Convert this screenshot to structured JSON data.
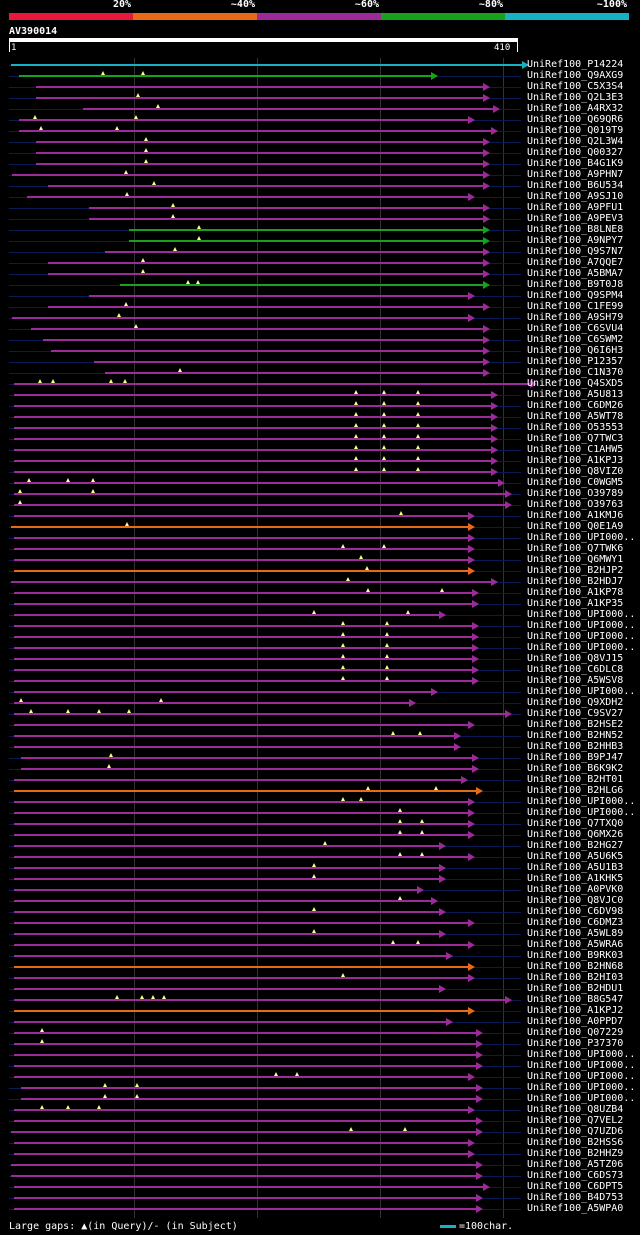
{
  "legend": {
    "labels": [
      "20%",
      "~40%",
      "~60%",
      "~80%",
      "~100%"
    ],
    "colors": [
      "#e8173c",
      "#e86a16",
      "#9c2a98",
      "#16a21c",
      "#17b1c4"
    ]
  },
  "query": {
    "id": "AV390014",
    "start_label": "1",
    "end_label": "410"
  },
  "hits": [
    {
      "name": "UniRef100_P14224",
      "bin": 5,
      "start": 1,
      "end": 415,
      "gaps": []
    },
    {
      "name": "UniRef100_Q9AXG9",
      "bin": 4,
      "start": 7,
      "end": 342,
      "gaps": [
        75,
        108
      ]
    },
    {
      "name": "UniRef100_C5X3S4",
      "bin": 3,
      "start": 21,
      "end": 384,
      "gaps": []
    },
    {
      "name": "UniRef100_Q2L3E3",
      "bin": 3,
      "start": 21,
      "end": 384,
      "gaps": [
        104
      ]
    },
    {
      "name": "UniRef100_A4RX32",
      "bin": 3,
      "start": 59,
      "end": 392,
      "gaps": [
        120
      ]
    },
    {
      "name": "UniRef100_Q69QR6",
      "bin": 3,
      "start": 7,
      "end": 372,
      "gaps": [
        20,
        102
      ]
    },
    {
      "name": "UniRef100_Q019T9",
      "bin": 3,
      "start": 7,
      "end": 390,
      "gaps": [
        25,
        87
      ]
    },
    {
      "name": "UniRef100_Q2L3W4",
      "bin": 3,
      "start": 21,
      "end": 384,
      "gaps": [
        110
      ]
    },
    {
      "name": "UniRef100_Q00327",
      "bin": 3,
      "start": 21,
      "end": 384,
      "gaps": [
        110
      ]
    },
    {
      "name": "UniRef100_B4G1K9",
      "bin": 3,
      "start": 21,
      "end": 384,
      "gaps": [
        110
      ]
    },
    {
      "name": "UniRef100_A9PHN7",
      "bin": 3,
      "start": 2,
      "end": 384,
      "gaps": [
        94
      ]
    },
    {
      "name": "UniRef100_B6U534",
      "bin": 3,
      "start": 31,
      "end": 384,
      "gaps": [
        117
      ]
    },
    {
      "name": "UniRef100_A9SJ10",
      "bin": 3,
      "start": 14,
      "end": 372,
      "gaps": [
        95
      ]
    },
    {
      "name": "UniRef100_A9PFU1",
      "bin": 3,
      "start": 64,
      "end": 384,
      "gaps": [
        132
      ]
    },
    {
      "name": "UniRef100_A9PEV3",
      "bin": 3,
      "start": 64,
      "end": 384,
      "gaps": [
        132
      ]
    },
    {
      "name": "UniRef100_B8LNE8",
      "bin": 4,
      "start": 96,
      "end": 384,
      "gaps": [
        153
      ]
    },
    {
      "name": "UniRef100_A9NPY7",
      "bin": 4,
      "start": 96,
      "end": 384,
      "gaps": [
        153
      ]
    },
    {
      "name": "UniRef100_Q9S7N7",
      "bin": 3,
      "start": 77,
      "end": 384,
      "gaps": [
        134
      ]
    },
    {
      "name": "UniRef100_A7QQE7",
      "bin": 3,
      "start": 31,
      "end": 384,
      "gaps": [
        108
      ]
    },
    {
      "name": "UniRef100_A5BMA7",
      "bin": 3,
      "start": 31,
      "end": 384,
      "gaps": [
        108
      ]
    },
    {
      "name": "UniRef100_B9T0J8",
      "bin": 4,
      "start": 89,
      "end": 384,
      "gaps": [
        144,
        152
      ]
    },
    {
      "name": "UniRef100_Q9SPM4",
      "bin": 3,
      "start": 64,
      "end": 372,
      "gaps": []
    },
    {
      "name": "UniRef100_C1FE99",
      "bin": 3,
      "start": 31,
      "end": 384,
      "gaps": [
        94
      ]
    },
    {
      "name": "UniRef100_A9SH79",
      "bin": 3,
      "start": 2,
      "end": 372,
      "gaps": [
        88
      ]
    },
    {
      "name": "UniRef100_C6SVU4",
      "bin": 3,
      "start": 17,
      "end": 384,
      "gaps": [
        102
      ]
    },
    {
      "name": "UniRef100_C6SWM2",
      "bin": 3,
      "start": 27,
      "end": 384,
      "gaps": []
    },
    {
      "name": "UniRef100_Q6I6H3",
      "bin": 3,
      "start": 33,
      "end": 384,
      "gaps": []
    },
    {
      "name": "UniRef100_P12357",
      "bin": 3,
      "start": 68,
      "end": 384,
      "gaps": []
    },
    {
      "name": "UniRef100_C1N370",
      "bin": 3,
      "start": 77,
      "end": 384,
      "gaps": [
        138
      ]
    },
    {
      "name": "UniRef100_Q4SXD5",
      "bin": 3,
      "start": 3,
      "end": 422,
      "gaps": [
        24,
        35,
        82,
        93
      ]
    },
    {
      "name": "UniRef100_A5U813",
      "bin": 3,
      "start": 3,
      "end": 390,
      "gaps": [
        280,
        303,
        330
      ]
    },
    {
      "name": "UniRef100_C6DM26",
      "bin": 3,
      "start": 3,
      "end": 390,
      "gaps": [
        280,
        303,
        330
      ]
    },
    {
      "name": "UniRef100_A5WT78",
      "bin": 3,
      "start": 3,
      "end": 390,
      "gaps": [
        280,
        303,
        330
      ]
    },
    {
      "name": "UniRef100_O53553",
      "bin": 3,
      "start": 3,
      "end": 390,
      "gaps": [
        280,
        303,
        330
      ]
    },
    {
      "name": "UniRef100_Q7TWC3",
      "bin": 3,
      "start": 3,
      "end": 390,
      "gaps": [
        280,
        303,
        330
      ]
    },
    {
      "name": "UniRef100_C1AHW5",
      "bin": 3,
      "start": 3,
      "end": 390,
      "gaps": [
        280,
        303,
        330
      ]
    },
    {
      "name": "UniRef100_A1KPJ3",
      "bin": 3,
      "start": 3,
      "end": 390,
      "gaps": [
        280,
        303,
        330
      ]
    },
    {
      "name": "UniRef100_Q8VIZ0",
      "bin": 3,
      "start": 3,
      "end": 390,
      "gaps": [
        280,
        303,
        330
      ]
    },
    {
      "name": "UniRef100_C0WGM5",
      "bin": 3,
      "start": 3,
      "end": 396,
      "gaps": [
        15,
        47,
        67
      ]
    },
    {
      "name": "UniRef100_O39789",
      "bin": 3,
      "start": 3,
      "end": 402,
      "gaps": [
        8,
        67
      ]
    },
    {
      "name": "UniRef100_O39763",
      "bin": 3,
      "start": 3,
      "end": 402,
      "gaps": [
        8
      ]
    },
    {
      "name": "UniRef100_A1KMJ6",
      "bin": 3,
      "start": 3,
      "end": 372,
      "gaps": [
        317
      ]
    },
    {
      "name": "UniRef100_Q0E1A9",
      "bin": 2,
      "start": 1,
      "end": 372,
      "gaps": [
        95
      ]
    },
    {
      "name": "UniRef100_UPI000..",
      "bin": 3,
      "start": 3,
      "end": 372,
      "gaps": []
    },
    {
      "name": "UniRef100_Q7TWK6",
      "bin": 3,
      "start": 3,
      "end": 372,
      "gaps": [
        270,
        303
      ]
    },
    {
      "name": "UniRef100_Q6MWY1",
      "bin": 3,
      "start": 3,
      "end": 372,
      "gaps": [
        284
      ]
    },
    {
      "name": "UniRef100_B2HJP2",
      "bin": 2,
      "start": 3,
      "end": 372,
      "gaps": [
        289
      ]
    },
    {
      "name": "UniRef100_B2HDJ7",
      "bin": 3,
      "start": 1,
      "end": 390,
      "gaps": [
        274
      ]
    },
    {
      "name": "UniRef100_A1KP78",
      "bin": 3,
      "start": 3,
      "end": 375,
      "gaps": [
        290,
        350
      ]
    },
    {
      "name": "UniRef100_A1KP35",
      "bin": 3,
      "start": 3,
      "end": 375,
      "gaps": []
    },
    {
      "name": "UniRef100_UPI000..",
      "bin": 3,
      "start": 3,
      "end": 348,
      "gaps": [
        246,
        322
      ]
    },
    {
      "name": "UniRef100_UPI000..",
      "bin": 3,
      "start": 3,
      "end": 375,
      "gaps": [
        270,
        305
      ]
    },
    {
      "name": "UniRef100_UPI000..",
      "bin": 3,
      "start": 3,
      "end": 375,
      "gaps": [
        270,
        305
      ]
    },
    {
      "name": "UniRef100_UPI000..",
      "bin": 3,
      "start": 3,
      "end": 375,
      "gaps": [
        270,
        305
      ]
    },
    {
      "name": "UniRef100_Q8VJ15",
      "bin": 3,
      "start": 3,
      "end": 375,
      "gaps": [
        270,
        305
      ]
    },
    {
      "name": "UniRef100_C6DLC8",
      "bin": 3,
      "start": 3,
      "end": 375,
      "gaps": [
        270,
        305
      ]
    },
    {
      "name": "UniRef100_A5WSV8",
      "bin": 3,
      "start": 3,
      "end": 375,
      "gaps": [
        270,
        305
      ]
    },
    {
      "name": "UniRef100_UPI000..",
      "bin": 3,
      "start": 3,
      "end": 342,
      "gaps": []
    },
    {
      "name": "UniRef100_Q9XDH2",
      "bin": 3,
      "start": 3,
      "end": 324,
      "gaps": [
        9,
        122
      ]
    },
    {
      "name": "UniRef100_C9SV27",
      "bin": 3,
      "start": 3,
      "end": 402,
      "gaps": [
        17,
        47,
        72,
        96
      ]
    },
    {
      "name": "UniRef100_B2HSE2",
      "bin": 3,
      "start": 3,
      "end": 372,
      "gaps": []
    },
    {
      "name": "UniRef100_B2HN52",
      "bin": 3,
      "start": 3,
      "end": 360,
      "gaps": [
        310,
        332
      ]
    },
    {
      "name": "UniRef100_B2HHB3",
      "bin": 3,
      "start": 3,
      "end": 360,
      "gaps": []
    },
    {
      "name": "UniRef100_B9PJ47",
      "bin": 3,
      "start": 9,
      "end": 375,
      "gaps": [
        82
      ]
    },
    {
      "name": "UniRef100_B6K9K2",
      "bin": 3,
      "start": 9,
      "end": 375,
      "gaps": [
        80
      ]
    },
    {
      "name": "UniRef100_B2HT01",
      "bin": 3,
      "start": 3,
      "end": 366,
      "gaps": []
    },
    {
      "name": "UniRef100_B2HLG6",
      "bin": 2,
      "start": 3,
      "end": 378,
      "gaps": [
        290,
        345
      ]
    },
    {
      "name": "UniRef100_UPI000..",
      "bin": 3,
      "start": 3,
      "end": 372,
      "gaps": [
        270,
        284
      ]
    },
    {
      "name": "UniRef100_UPI000..",
      "bin": 3,
      "start": 3,
      "end": 372,
      "gaps": [
        316
      ]
    },
    {
      "name": "UniRef100_Q7TXQ0",
      "bin": 3,
      "start": 3,
      "end": 372,
      "gaps": [
        316,
        334
      ]
    },
    {
      "name": "UniRef100_Q6MX26",
      "bin": 3,
      "start": 3,
      "end": 372,
      "gaps": [
        316,
        334
      ]
    },
    {
      "name": "UniRef100_B2HG27",
      "bin": 3,
      "start": 3,
      "end": 348,
      "gaps": [
        255
      ]
    },
    {
      "name": "UniRef100_A5U6K5",
      "bin": 3,
      "start": 3,
      "end": 372,
      "gaps": [
        316,
        334
      ]
    },
    {
      "name": "UniRef100_A5U1B3",
      "bin": 3,
      "start": 3,
      "end": 348,
      "gaps": [
        246
      ]
    },
    {
      "name": "UniRef100_A1KHK5",
      "bin": 3,
      "start": 3,
      "end": 348,
      "gaps": [
        246
      ]
    },
    {
      "name": "UniRef100_A0PVK0",
      "bin": 3,
      "start": 3,
      "end": 330,
      "gaps": []
    },
    {
      "name": "UniRef100_Q8VJC0",
      "bin": 3,
      "start": 3,
      "end": 342,
      "gaps": [
        316
      ]
    },
    {
      "name": "UniRef100_C6DV98",
      "bin": 3,
      "start": 3,
      "end": 348,
      "gaps": [
        246
      ]
    },
    {
      "name": "UniRef100_C6DMZ3",
      "bin": 3,
      "start": 3,
      "end": 372,
      "gaps": []
    },
    {
      "name": "UniRef100_A5WL89",
      "bin": 3,
      "start": 3,
      "end": 348,
      "gaps": [
        246
      ]
    },
    {
      "name": "UniRef100_A5WRA6",
      "bin": 3,
      "start": 3,
      "end": 372,
      "gaps": [
        310,
        330
      ]
    },
    {
      "name": "UniRef100_B9RK03",
      "bin": 3,
      "start": 3,
      "end": 354,
      "gaps": []
    },
    {
      "name": "UniRef100_B2HN68",
      "bin": 2,
      "start": 3,
      "end": 372,
      "gaps": []
    },
    {
      "name": "UniRef100_B2HI03",
      "bin": 3,
      "start": 3,
      "end": 372,
      "gaps": [
        270
      ]
    },
    {
      "name": "UniRef100_B2HDU1",
      "bin": 3,
      "start": 3,
      "end": 348,
      "gaps": []
    },
    {
      "name": "UniRef100_B8G547",
      "bin": 3,
      "start": 3,
      "end": 402,
      "gaps": [
        87,
        107,
        116,
        125
      ]
    },
    {
      "name": "UniRef100_A1KPJ2",
      "bin": 2,
      "start": 3,
      "end": 372,
      "gaps": []
    },
    {
      "name": "UniRef100_A0PPD7",
      "bin": 3,
      "start": 3,
      "end": 354,
      "gaps": []
    },
    {
      "name": "UniRef100_Q07229",
      "bin": 3,
      "start": 3,
      "end": 378,
      "gaps": [
        26
      ]
    },
    {
      "name": "UniRef100_P37370",
      "bin": 3,
      "start": 3,
      "end": 378,
      "gaps": [
        26
      ]
    },
    {
      "name": "UniRef100_UPI000..",
      "bin": 3,
      "start": 3,
      "end": 378,
      "gaps": []
    },
    {
      "name": "UniRef100_UPI000..",
      "bin": 3,
      "start": 3,
      "end": 378,
      "gaps": []
    },
    {
      "name": "UniRef100_UPI000..",
      "bin": 3,
      "start": 3,
      "end": 372,
      "gaps": [
        215,
        232
      ]
    },
    {
      "name": "UniRef100_UPI000..",
      "bin": 3,
      "start": 9,
      "end": 378,
      "gaps": [
        77,
        103
      ]
    },
    {
      "name": "UniRef100_UPI000..",
      "bin": 3,
      "start": 9,
      "end": 378,
      "gaps": [
        77,
        103
      ]
    },
    {
      "name": "UniRef100_Q8UZB4",
      "bin": 3,
      "start": 3,
      "end": 372,
      "gaps": [
        26,
        47,
        72
      ]
    },
    {
      "name": "UniRef100_Q7VEL2",
      "bin": 3,
      "start": 3,
      "end": 378,
      "gaps": []
    },
    {
      "name": "UniRef100_Q7UZD6",
      "bin": 3,
      "start": 1,
      "end": 378,
      "gaps": [
        276,
        320
      ]
    },
    {
      "name": "UniRef100_B2HSS6",
      "bin": 3,
      "start": 3,
      "end": 372,
      "gaps": []
    },
    {
      "name": "UniRef100_B2HHZ9",
      "bin": 3,
      "start": 3,
      "end": 372,
      "gaps": []
    },
    {
      "name": "UniRef100_A5TZ06",
      "bin": 3,
      "start": 1,
      "end": 378,
      "gaps": []
    },
    {
      "name": "UniRef100_C6DS73",
      "bin": 3,
      "start": 1,
      "end": 378,
      "gaps": []
    },
    {
      "name": "UniRef100_C6DPT5",
      "bin": 3,
      "start": 3,
      "end": 384,
      "gaps": []
    },
    {
      "name": "UniRef100_B4D753",
      "bin": 3,
      "start": 3,
      "end": 378,
      "gaps": []
    },
    {
      "name": "UniRef100_A5WPA0",
      "bin": 3,
      "start": 3,
      "end": 378,
      "gaps": []
    }
  ],
  "footer": {
    "gaps_label": "Large gaps: ▲(in Query)/- (in Subject)",
    "scale_label": "=100char.",
    "scale_color": "#17b1c4"
  }
}
